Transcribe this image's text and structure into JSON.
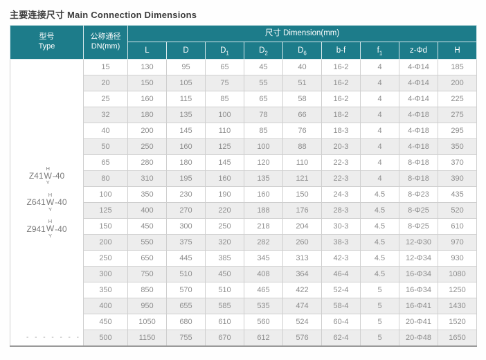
{
  "page": {
    "title": "主要连接尺寸 Main Connection Dimensions"
  },
  "colors": {
    "header_teal": "#1d7c8a",
    "stripe_gray": "#ededed",
    "data_text": "#8d8d8d",
    "title_text": "#3d3d3d"
  },
  "table": {
    "header": {
      "type_label": "型号",
      "type_sub": "Type",
      "dn_label": "公称通径",
      "dn_sub": "DN(mm)",
      "dimension_label": "尺寸 Dimension(mm)",
      "columns": [
        {
          "id": "L",
          "base": "L",
          "sub": ""
        },
        {
          "id": "D",
          "base": "D",
          "sub": ""
        },
        {
          "id": "D1",
          "base": "D",
          "sub": "1"
        },
        {
          "id": "D2",
          "base": "D",
          "sub": "2"
        },
        {
          "id": "D6",
          "base": "D",
          "sub": "6"
        },
        {
          "id": "b-f",
          "base": "b-f",
          "sub": ""
        },
        {
          "id": "f1",
          "base": "f",
          "sub": "1"
        },
        {
          "id": "z-d",
          "base": "z-Φd",
          "sub": ""
        },
        {
          "id": "H",
          "base": "H",
          "sub": ""
        }
      ]
    },
    "type_models": [
      {
        "prefix": "Z41",
        "sup": "H",
        "mid": "W",
        "sub": "Y",
        "suffix": "-40"
      },
      {
        "prefix": "Z641",
        "sup": "H",
        "mid": "W",
        "sub": "Y",
        "suffix": "-40"
      },
      {
        "prefix": "Z941",
        "sup": "H",
        "mid": "W",
        "sub": "Y",
        "suffix": "-40"
      }
    ],
    "dash_note": "- - - - - - -",
    "rows": [
      {
        "dn": "15",
        "values": [
          "130",
          "95",
          "65",
          "45",
          "40",
          "16-2",
          "4",
          "4-Φ14",
          "185"
        ]
      },
      {
        "dn": "20",
        "values": [
          "150",
          "105",
          "75",
          "55",
          "51",
          "16-2",
          "4",
          "4-Φ14",
          "200"
        ]
      },
      {
        "dn": "25",
        "values": [
          "160",
          "115",
          "85",
          "65",
          "58",
          "16-2",
          "4",
          "4-Φ14",
          "225"
        ]
      },
      {
        "dn": "32",
        "values": [
          "180",
          "135",
          "100",
          "78",
          "66",
          "18-2",
          "4",
          "4-Φ18",
          "275"
        ]
      },
      {
        "dn": "40",
        "values": [
          "200",
          "145",
          "110",
          "85",
          "76",
          "18-3",
          "4",
          "4-Φ18",
          "295"
        ]
      },
      {
        "dn": "50",
        "values": [
          "250",
          "160",
          "125",
          "100",
          "88",
          "20-3",
          "4",
          "4-Φ18",
          "350"
        ]
      },
      {
        "dn": "65",
        "values": [
          "280",
          "180",
          "145",
          "120",
          "110",
          "22-3",
          "4",
          "8-Φ18",
          "370"
        ]
      },
      {
        "dn": "80",
        "values": [
          "310",
          "195",
          "160",
          "135",
          "121",
          "22-3",
          "4",
          "8-Φ18",
          "390"
        ]
      },
      {
        "dn": "100",
        "values": [
          "350",
          "230",
          "190",
          "160",
          "150",
          "24-3",
          "4.5",
          "8-Φ23",
          "435"
        ]
      },
      {
        "dn": "125",
        "values": [
          "400",
          "270",
          "220",
          "188",
          "176",
          "28-3",
          "4.5",
          "8-Φ25",
          "520"
        ]
      },
      {
        "dn": "150",
        "values": [
          "450",
          "300",
          "250",
          "218",
          "204",
          "30-3",
          "4.5",
          "8-Φ25",
          "610"
        ]
      },
      {
        "dn": "200",
        "values": [
          "550",
          "375",
          "320",
          "282",
          "260",
          "38-3",
          "4.5",
          "12-Φ30",
          "970"
        ]
      },
      {
        "dn": "250",
        "values": [
          "650",
          "445",
          "385",
          "345",
          "313",
          "42-3",
          "4.5",
          "12-Φ34",
          "930"
        ]
      },
      {
        "dn": "300",
        "values": [
          "750",
          "510",
          "450",
          "408",
          "364",
          "46-4",
          "4.5",
          "16-Φ34",
          "1080"
        ]
      },
      {
        "dn": "350",
        "values": [
          "850",
          "570",
          "510",
          "465",
          "422",
          "52-4",
          "5",
          "16-Φ34",
          "1250"
        ]
      },
      {
        "dn": "400",
        "values": [
          "950",
          "655",
          "585",
          "535",
          "474",
          "58-4",
          "5",
          "16-Φ41",
          "1430"
        ]
      },
      {
        "dn": "450",
        "values": [
          "1050",
          "680",
          "610",
          "560",
          "524",
          "60-4",
          "5",
          "20-Φ41",
          "1520"
        ]
      },
      {
        "dn": "500",
        "values": [
          "1150",
          "755",
          "670",
          "612",
          "576",
          "62-4",
          "5",
          "20-Φ48",
          "1650"
        ]
      }
    ]
  }
}
